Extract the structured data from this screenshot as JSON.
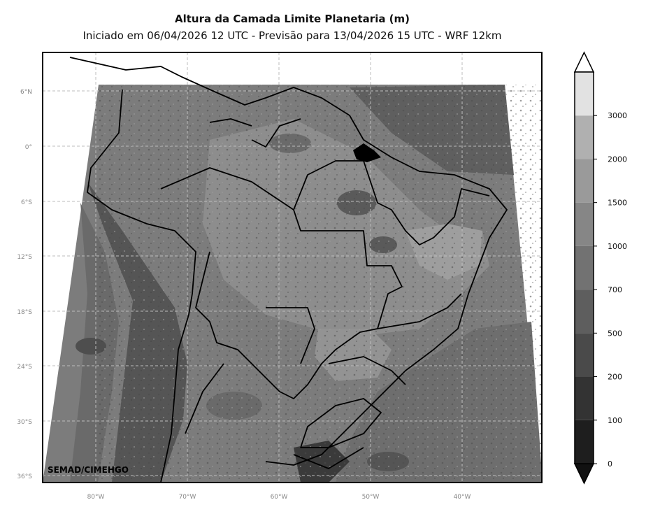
{
  "header": {
    "title": "Altura da Camada Limite Planetaria (m)",
    "subtitle": "Iniciado em 06/04/2026 12 UTC - Previsão para 13/04/2026 15 UTC - WRF 12km"
  },
  "map": {
    "lat_labels": [
      "6°N",
      "0°",
      "6°S",
      "12°S",
      "18°S",
      "24°S",
      "30°S",
      "36°S"
    ],
    "lon_labels": [
      "80°W",
      "70°W",
      "60°W",
      "50°W",
      "40°W"
    ],
    "credit": "SEMAD/CIMEHGO",
    "gridlines": true
  },
  "colorbar": {
    "levels": [
      "0",
      "100",
      "200",
      "500",
      "700",
      "1000",
      "1500",
      "2000",
      "3000"
    ],
    "colors": [
      "#1e1e1e",
      "#333333",
      "#4a4a4a",
      "#5e5e5e",
      "#727272",
      "#868686",
      "#9a9a9a",
      "#b0b0b0",
      "#e2e2e2"
    ],
    "extend": "both"
  }
}
